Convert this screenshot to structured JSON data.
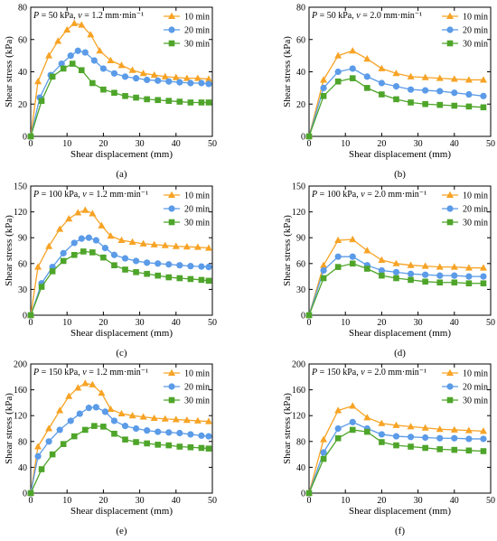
{
  "figure_title": "",
  "colors": {
    "10 min": "#F7A325",
    "20 min": "#5B9BE8",
    "30 min": "#4EA52A"
  },
  "chart_data": [
    {
      "type": "line",
      "label": "(a)",
      "condition": {
        "P": "50 kPa",
        "v": "1.2 mm·min⁻¹"
      },
      "xlabel": "Shear displacement (mm)",
      "ylabel": "Shear stress (kPa)",
      "xlim": [
        0,
        50
      ],
      "ylim": [
        0,
        80
      ],
      "xticks": [
        0,
        10,
        20,
        30,
        40,
        50
      ],
      "yticks": [
        0,
        20,
        40,
        60,
        80
      ],
      "series": [
        {
          "name": "10 min",
          "marker": "triangle",
          "x": [
            0,
            2,
            5,
            7.5,
            10,
            12,
            14,
            16.5,
            19,
            22,
            25,
            28,
            31,
            34,
            37,
            40,
            43,
            46,
            49
          ],
          "y": [
            0,
            34,
            50,
            59,
            66,
            70,
            69,
            63,
            53,
            47,
            44,
            41,
            39,
            38,
            37,
            36.5,
            36,
            36,
            35.5
          ]
        },
        {
          "name": "20 min",
          "marker": "circle",
          "x": [
            0,
            2.5,
            5.5,
            8.5,
            11,
            13,
            15,
            17.5,
            20,
            23,
            26,
            29,
            32,
            35,
            38,
            41,
            44,
            47,
            49
          ],
          "y": [
            0,
            24,
            38,
            45,
            50,
            53,
            52,
            47,
            42,
            39,
            37,
            36,
            35,
            34.5,
            34,
            33.5,
            33,
            33,
            32.5
          ]
        },
        {
          "name": "30 min",
          "marker": "square",
          "x": [
            0,
            3,
            6,
            9,
            11.5,
            14,
            17,
            20,
            23,
            26,
            29,
            32,
            35,
            38,
            41,
            44,
            47,
            49
          ],
          "y": [
            0,
            22,
            37,
            42,
            45,
            41,
            33,
            29,
            27,
            25,
            24,
            23,
            22.5,
            22,
            21.5,
            21,
            21,
            21
          ]
        }
      ]
    },
    {
      "type": "line",
      "label": "(b)",
      "condition": {
        "P": "50 kPa",
        "v": "2.0 mm·min⁻¹"
      },
      "xlabel": "Shear displacement (mm)",
      "ylabel": "Shear stress (kPa)",
      "xlim": [
        0,
        50
      ],
      "ylim": [
        0,
        80
      ],
      "xticks": [
        0,
        10,
        20,
        30,
        40,
        50
      ],
      "yticks": [
        0,
        20,
        40,
        60,
        80
      ],
      "series": [
        {
          "name": "10 min",
          "marker": "triangle",
          "x": [
            0,
            4,
            8,
            12,
            16,
            20,
            24,
            28,
            32,
            36,
            40,
            44,
            48
          ],
          "y": [
            0,
            35,
            50,
            53,
            48,
            42,
            39,
            37,
            36.5,
            36,
            35.5,
            35,
            35
          ]
        },
        {
          "name": "20 min",
          "marker": "circle",
          "x": [
            0,
            4,
            8,
            12,
            16,
            20,
            24,
            28,
            32,
            36,
            40,
            44,
            48
          ],
          "y": [
            0,
            30,
            40,
            42,
            37,
            33,
            31,
            29,
            28.5,
            28,
            27,
            26,
            25
          ]
        },
        {
          "name": "30 min",
          "marker": "square",
          "x": [
            0,
            4,
            8,
            12,
            16,
            20,
            24,
            28,
            32,
            36,
            40,
            44,
            48
          ],
          "y": [
            0,
            25,
            34,
            36,
            30,
            26,
            23,
            21,
            20,
            19.5,
            19,
            18.5,
            18
          ]
        }
      ]
    },
    {
      "type": "line",
      "label": "(c)",
      "condition": {
        "P": "100 kPa",
        "v": "1.2 mm·min⁻¹"
      },
      "xlabel": "Shear displacement (mm)",
      "ylabel": "Shear stress (kPa)",
      "xlim": [
        0,
        50
      ],
      "ylim": [
        0,
        150
      ],
      "xticks": [
        0,
        10,
        20,
        30,
        40,
        50
      ],
      "yticks": [
        0,
        30,
        60,
        90,
        120,
        150
      ],
      "series": [
        {
          "name": "10 min",
          "marker": "triangle",
          "x": [
            0,
            2,
            5,
            8,
            10.5,
            13,
            15,
            17,
            19.5,
            22,
            25,
            28,
            31,
            34,
            37,
            40,
            43,
            46,
            49
          ],
          "y": [
            0,
            56,
            80,
            100,
            112,
            119,
            122,
            118,
            104,
            92,
            87,
            85,
            83,
            82,
            81,
            80,
            79.5,
            79,
            78
          ]
        },
        {
          "name": "20 min",
          "marker": "circle",
          "x": [
            0,
            3,
            6,
            9,
            12,
            14,
            16,
            18,
            20.5,
            23,
            26,
            29,
            32,
            35,
            38,
            41,
            44,
            47,
            49
          ],
          "y": [
            0,
            37,
            56,
            72,
            84,
            89,
            90,
            87,
            78,
            70,
            66,
            63,
            61,
            60,
            59,
            58,
            57,
            56.5,
            56
          ]
        },
        {
          "name": "30 min",
          "marker": "square",
          "x": [
            0,
            3,
            6,
            9,
            12,
            14.5,
            17,
            20,
            23,
            26,
            29,
            32,
            35,
            38,
            41,
            44,
            47,
            49
          ],
          "y": [
            0,
            33,
            51,
            63,
            70,
            74,
            73,
            67,
            58,
            53,
            50,
            48,
            46,
            44,
            43,
            42,
            41,
            40
          ]
        }
      ]
    },
    {
      "type": "line",
      "label": "(d)",
      "condition": {
        "P": "100 kPa",
        "v": "2.0 mm·min⁻¹"
      },
      "xlabel": "Shear displacement (mm)",
      "ylabel": "Shear stress (kPa)",
      "xlim": [
        0,
        50
      ],
      "ylim": [
        0,
        150
      ],
      "xticks": [
        0,
        10,
        20,
        30,
        40,
        50
      ],
      "yticks": [
        0,
        30,
        60,
        90,
        120,
        150
      ],
      "series": [
        {
          "name": "10 min",
          "marker": "triangle",
          "x": [
            0,
            4,
            8,
            12,
            16,
            20,
            24,
            28,
            32,
            36,
            40,
            44,
            48
          ],
          "y": [
            0,
            58,
            87,
            88,
            75,
            64,
            60,
            58,
            57,
            56,
            56,
            55,
            55
          ]
        },
        {
          "name": "20 min",
          "marker": "circle",
          "x": [
            0,
            4,
            8,
            12,
            16,
            20,
            24,
            28,
            32,
            36,
            40,
            44,
            48
          ],
          "y": [
            0,
            52,
            68,
            68,
            58,
            52,
            50,
            48,
            47,
            46,
            46,
            45,
            45
          ]
        },
        {
          "name": "30 min",
          "marker": "square",
          "x": [
            0,
            4,
            8,
            12,
            16,
            20,
            24,
            28,
            32,
            36,
            40,
            44,
            48
          ],
          "y": [
            0,
            43,
            56,
            60,
            54,
            46,
            43,
            41,
            39,
            38,
            38,
            37,
            37
          ]
        }
      ]
    },
    {
      "type": "line",
      "label": "(e)",
      "condition": {
        "P": "150 kPa",
        "v": "1.2 mm·min⁻¹"
      },
      "xlabel": "Shear displacement (mm)",
      "ylabel": "Shear stress (kPa)",
      "xlim": [
        0,
        50
      ],
      "ylim": [
        0,
        200
      ],
      "xticks": [
        0,
        10,
        20,
        30,
        40,
        50
      ],
      "yticks": [
        0,
        40,
        80,
        120,
        160,
        200
      ],
      "series": [
        {
          "name": "10 min",
          "marker": "triangle",
          "x": [
            0,
            2,
            5,
            8,
            10.5,
            13,
            15,
            17,
            19.5,
            22,
            25,
            28,
            31,
            34,
            37,
            40,
            43,
            46,
            49
          ],
          "y": [
            0,
            72,
            100,
            128,
            150,
            163,
            170,
            168,
            155,
            130,
            123,
            120,
            118,
            116,
            115,
            114,
            113,
            112,
            111
          ]
        },
        {
          "name": "20 min",
          "marker": "circle",
          "x": [
            0,
            2,
            5,
            8,
            11,
            13.5,
            16,
            18,
            20.5,
            23,
            26,
            29,
            32,
            35,
            38,
            41,
            44,
            47,
            49
          ],
          "y": [
            0,
            57,
            80,
            98,
            112,
            123,
            132,
            133,
            126,
            112,
            104,
            100,
            97,
            95,
            94,
            93,
            91,
            89,
            88
          ]
        },
        {
          "name": "30 min",
          "marker": "square",
          "x": [
            0,
            3,
            6,
            9,
            12,
            15,
            17.5,
            20,
            23,
            26,
            29,
            32,
            35,
            38,
            41,
            44,
            47,
            49
          ],
          "y": [
            0,
            37,
            60,
            76,
            88,
            98,
            104,
            103,
            92,
            83,
            79,
            77,
            75,
            74,
            72,
            71,
            70,
            69
          ]
        }
      ]
    },
    {
      "type": "line",
      "label": "(f)",
      "condition": {
        "P": "150 kPa",
        "v": "2.0 mm·min⁻¹"
      },
      "xlabel": "Shear displacement (mm)",
      "ylabel": "Shear stress (kPa)",
      "xlim": [
        0,
        50
      ],
      "ylim": [
        0,
        200
      ],
      "xticks": [
        0,
        10,
        20,
        30,
        40,
        50
      ],
      "yticks": [
        0,
        40,
        80,
        120,
        160,
        200
      ],
      "series": [
        {
          "name": "10 min",
          "marker": "triangle",
          "x": [
            0,
            4,
            8,
            12,
            16,
            20,
            24,
            28,
            32,
            36,
            40,
            44,
            48
          ],
          "y": [
            0,
            83,
            128,
            135,
            117,
            108,
            105,
            103,
            101,
            99,
            98,
            97,
            96
          ]
        },
        {
          "name": "20 min",
          "marker": "circle",
          "x": [
            0,
            4,
            8,
            12,
            16,
            20,
            24,
            28,
            32,
            36,
            40,
            44,
            48
          ],
          "y": [
            0,
            63,
            100,
            110,
            100,
            91,
            88,
            87,
            86,
            85,
            85,
            84,
            84
          ]
        },
        {
          "name": "30 min",
          "marker": "square",
          "x": [
            0,
            4,
            8,
            12,
            16,
            20,
            24,
            28,
            32,
            36,
            40,
            44,
            48
          ],
          "y": [
            0,
            53,
            85,
            98,
            95,
            79,
            74,
            72,
            70,
            68,
            67,
            66,
            65
          ]
        }
      ]
    }
  ]
}
